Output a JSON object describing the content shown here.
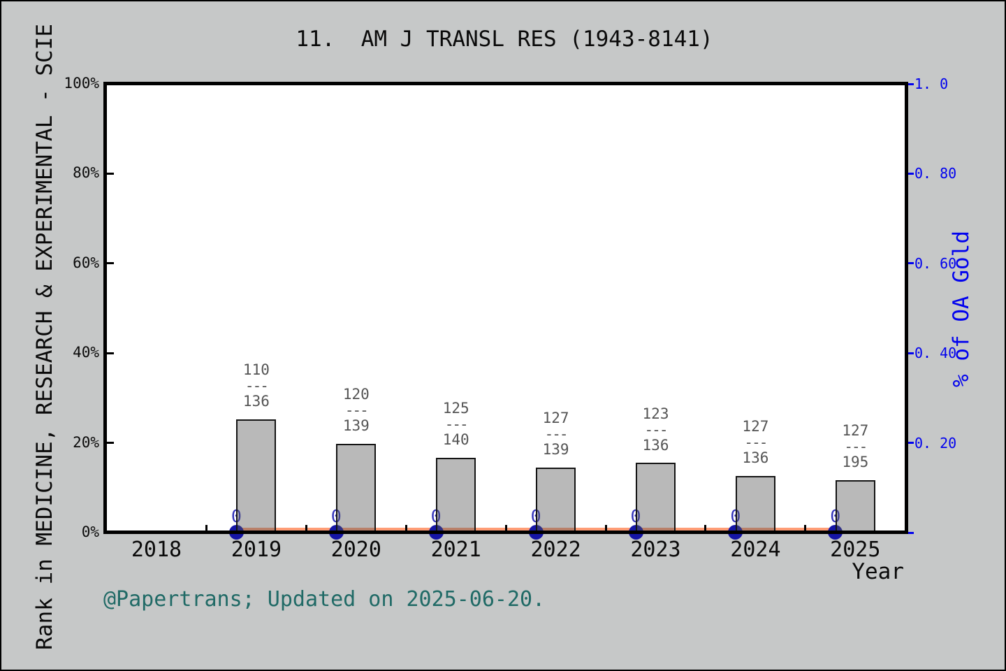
{
  "title": "11.  AM J TRANSL RES (1943-8141)",
  "footer": {
    "credit": "@Papertrans; Updated on 2025-06-20."
  },
  "axes": {
    "left": {
      "label": "Rank in MEDICINE, RESEARCH & EXPERIMENTAL - SCIE",
      "tick_labels": [
        "100%",
        "80%",
        "60%",
        "40%",
        "20%",
        "0%"
      ]
    },
    "right": {
      "label": "% of OA Gold",
      "tick_labels": [
        "1. 0",
        "0. 80",
        "0. 60",
        "0. 40",
        "0. 20"
      ]
    },
    "x": {
      "label": "Year",
      "tick_labels": [
        "2018",
        "2019",
        "2020",
        "2021",
        "2022",
        "2023",
        "2024",
        "2025"
      ]
    }
  },
  "chart_data": {
    "type": "bar",
    "title": "11. AM J TRANSL RES (1943-8141)",
    "xlabel": "Year",
    "ylabel_left": "Rank in MEDICINE, RESEARCH & EXPERIMENTAL - SCIE",
    "ylabel_right": "% of OA Gold",
    "left_axis_range_pct": [
      0,
      100
    ],
    "right_axis_range": [
      0,
      1.0
    ],
    "grid": false,
    "legend": "none",
    "categories": [
      "2018",
      "2019",
      "2020",
      "2021",
      "2022",
      "2023",
      "2024",
      "2025"
    ],
    "fraction_dash": "---",
    "bars": [
      {
        "year": "2019",
        "rank": "110",
        "total": "136",
        "height_pct": 25.2
      },
      {
        "year": "2020",
        "rank": "120",
        "total": "139",
        "height_pct": 19.8
      },
      {
        "year": "2021",
        "rank": "125",
        "total": "140",
        "height_pct": 16.7
      },
      {
        "year": "2022",
        "rank": "127",
        "total": "139",
        "height_pct": 14.5
      },
      {
        "year": "2023",
        "rank": "123",
        "total": "136",
        "height_pct": 15.5
      },
      {
        "year": "2024",
        "rank": "127",
        "total": "136",
        "height_pct": 12.6
      },
      {
        "year": "2025",
        "rank": "127",
        "total": "195",
        "height_pct": 11.7
      }
    ],
    "oa_gold_series": {
      "name": "% of OA Gold",
      "years": [
        "2019",
        "2020",
        "2021",
        "2022",
        "2023",
        "2024",
        "2025"
      ],
      "values": [
        0,
        0,
        0,
        0,
        0,
        0,
        0
      ],
      "point_label": "0"
    }
  },
  "colors": {
    "background": "#c6c8c8",
    "plot_bg": "#ffffff",
    "bar_fill_hex": "#b9b9b9",
    "bar_fill_rgba": "rgba(88,88,88,0.42)",
    "bar_edge": "#141414",
    "fraction_text": "#545454",
    "oa_line": "#ff9d76",
    "oa_marker": "#1515a6",
    "oa_point_label": "#3333bb",
    "right_axis": "#0202ee",
    "footer_text": "#206a66",
    "text": "#0a0a0a"
  }
}
